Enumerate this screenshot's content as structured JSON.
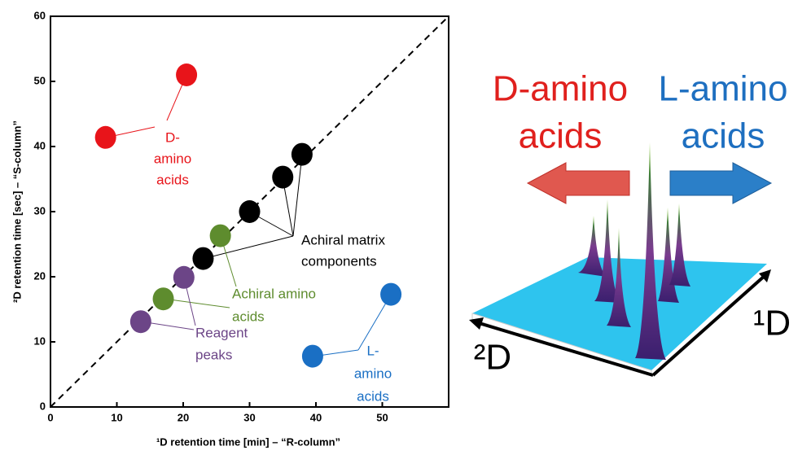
{
  "chart_data": {
    "type": "scatter",
    "x_label": "¹D retention time [min] – “R-column”",
    "y_label": "²D retention time [sec] – “S-column”",
    "xlim": [
      0,
      60
    ],
    "ylim": [
      0,
      60
    ],
    "xticks": [
      0,
      10,
      20,
      30,
      40,
      50
    ],
    "yticks": [
      0,
      10,
      20,
      30,
      40,
      50,
      60
    ],
    "series": [
      {
        "color": "#e8141a",
        "x": [
          20.5,
          8.3
        ],
        "values": [
          51,
          41.4
        ]
      },
      {
        "color": "#000000",
        "x": [
          37.9,
          35,
          30,
          23
        ],
        "values": [
          38.8,
          35.3,
          30,
          22.8
        ]
      },
      {
        "color": "#5e8c2e",
        "x": [
          25.6,
          17
        ],
        "values": [
          26.3,
          16.6
        ]
      },
      {
        "color": "#6c4587",
        "x": [
          20.1,
          13.6
        ],
        "values": [
          19.9,
          13.1
        ]
      },
      {
        "color": "#1a6fc4",
        "x": [
          51.3,
          39.5
        ],
        "values": [
          17.3,
          7.8
        ]
      }
    ],
    "annotations": [
      {
        "lines": [
          "D-",
          "amino",
          "acids"
        ],
        "color": "#e8141a"
      },
      {
        "lines": [
          "Achiral matrix",
          "components"
        ],
        "color": "#000000"
      },
      {
        "lines": [
          "Achiral amino",
          "acids"
        ],
        "color": "#5e8c2e"
      },
      {
        "lines": [
          "Reagent",
          "peaks"
        ],
        "color": "#6c4587"
      },
      {
        "lines": [
          "L-",
          "amino",
          "acids"
        ],
        "color": "#1a6fc4"
      }
    ]
  },
  "illustration": {
    "left_label": {
      "lines": [
        "D-amino",
        "acids"
      ],
      "color": "#e0201d"
    },
    "right_label": {
      "lines": [
        "L-amino",
        "acids"
      ],
      "color": "#1e6fc0"
    },
    "axis_1": "¹D",
    "axis_2": "²D"
  }
}
